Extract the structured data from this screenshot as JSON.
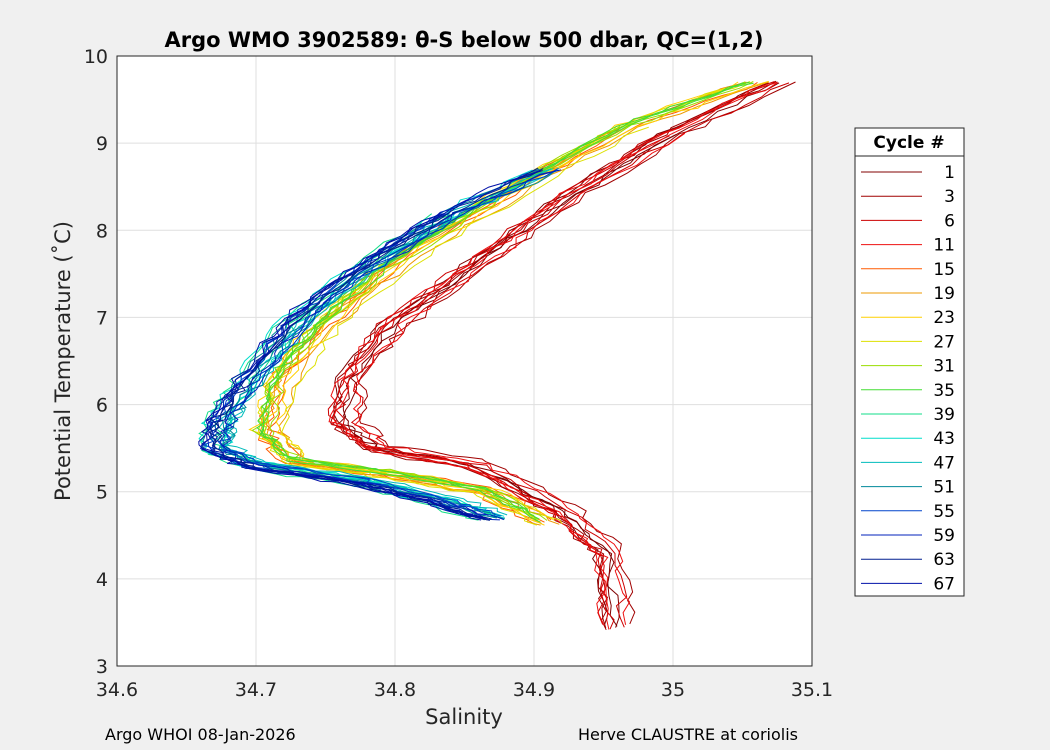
{
  "chart_data": {
    "type": "line",
    "title": "Argo WMO 3902589: θ-S below 500 dbar,  QC=(1,2)",
    "xlabel": "Salinity",
    "ylabel": "Potential Temperature (˚C)",
    "xlim": [
      34.6,
      35.1
    ],
    "ylim": [
      3,
      10
    ],
    "xticks": [
      "34.6",
      "34.7",
      "34.8",
      "34.9",
      "35",
      "35.1"
    ],
    "yticks": [
      "3",
      "4",
      "5",
      "6",
      "7",
      "8",
      "9",
      "10"
    ],
    "grid": true,
    "legend": {
      "title": "Cycle #",
      "placement": "right outside",
      "entries": [
        {
          "label": "1",
          "color": "#800000"
        },
        {
          "label": "3",
          "color": "#a00000"
        },
        {
          "label": "6",
          "color": "#cc0000"
        },
        {
          "label": "11",
          "color": "#ee1010"
        },
        {
          "label": "15",
          "color": "#ff5a00"
        },
        {
          "label": "19",
          "color": "#ee9900"
        },
        {
          "label": "23",
          "color": "#ffd000"
        },
        {
          "label": "27",
          "color": "#dde000"
        },
        {
          "label": "31",
          "color": "#99dd00"
        },
        {
          "label": "35",
          "color": "#44dd33"
        },
        {
          "label": "39",
          "color": "#11dd88"
        },
        {
          "label": "43",
          "color": "#00ddcc"
        },
        {
          "label": "47",
          "color": "#00bbbb"
        },
        {
          "label": "51",
          "color": "#008899"
        },
        {
          "label": "55",
          "color": "#0044cc"
        },
        {
          "label": "59",
          "color": "#0022bb"
        },
        {
          "label": "63",
          "color": "#001f8f"
        },
        {
          "label": "67",
          "color": "#0010a8"
        }
      ]
    },
    "profile_shapes": [
      {
        "group": "early",
        "cycles": [
          "1",
          "3",
          "6",
          "11"
        ],
        "points": [
          [
            35.08,
            9.7
          ],
          [
            35.0,
            9.1
          ],
          [
            34.92,
            8.3
          ],
          [
            34.86,
            7.6
          ],
          [
            34.8,
            6.9
          ],
          [
            34.77,
            6.3
          ],
          [
            34.765,
            5.8
          ],
          [
            34.79,
            5.5
          ],
          [
            34.86,
            5.3
          ],
          [
            34.92,
            4.8
          ],
          [
            34.955,
            4.3
          ],
          [
            34.96,
            3.45
          ]
        ]
      },
      {
        "group": "mid",
        "cycles": [
          "15",
          "19",
          "23",
          "27",
          "31",
          "35"
        ],
        "points": [
          [
            35.06,
            9.7
          ],
          [
            34.97,
            9.2
          ],
          [
            34.88,
            8.4
          ],
          [
            34.8,
            7.6
          ],
          [
            34.75,
            6.9
          ],
          [
            34.72,
            6.3
          ],
          [
            34.71,
            5.7
          ],
          [
            34.73,
            5.35
          ],
          [
            34.8,
            5.2
          ],
          [
            34.87,
            5.0
          ],
          [
            34.91,
            4.65
          ]
        ]
      },
      {
        "group": "late",
        "cycles": [
          "39",
          "43",
          "47",
          "51",
          "55",
          "59",
          "63",
          "67"
        ],
        "points": [
          [
            34.91,
            8.7
          ],
          [
            34.84,
            8.2
          ],
          [
            34.78,
            7.6
          ],
          [
            34.73,
            7.0
          ],
          [
            34.695,
            6.3
          ],
          [
            34.675,
            5.85
          ],
          [
            34.67,
            5.5
          ],
          [
            34.7,
            5.3
          ],
          [
            34.78,
            5.1
          ],
          [
            34.83,
            4.9
          ],
          [
            34.87,
            4.7
          ]
        ]
      }
    ]
  },
  "footer": {
    "left": "Argo WHOI 08-Jan-2026",
    "right": "Herve CLAUSTRE at coriolis"
  }
}
